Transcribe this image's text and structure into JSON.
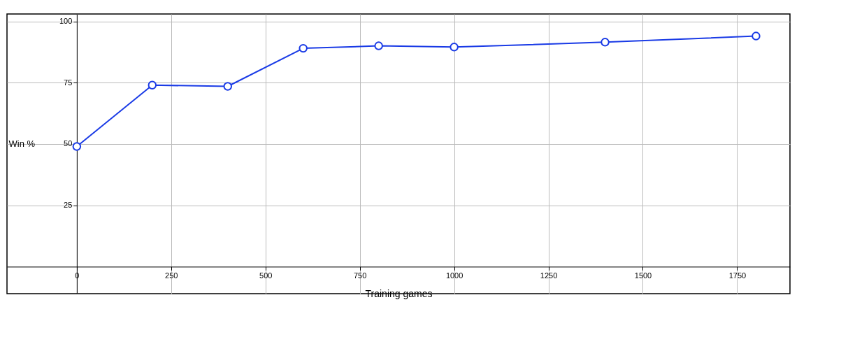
{
  "chart_data": {
    "type": "line",
    "xlabel": "Training games",
    "ylabel": "Win %",
    "x": [
      0,
      200,
      400,
      600,
      800,
      1000,
      1400,
      1800
    ],
    "series": [
      {
        "color": "#1a3be6",
        "values": [
          49,
          74,
          73.5,
          89,
          90,
          89.5,
          91.5,
          94
        ]
      }
    ],
    "xlim": [
      -185,
      1890
    ],
    "ylim": [
      -11,
      103
    ],
    "xticks": [
      0,
      250,
      500,
      750,
      1000,
      1250,
      1500,
      1750
    ],
    "yticks": [
      25,
      50,
      75,
      100
    ],
    "grid": true,
    "marker": "circle",
    "line_style": "solid"
  }
}
